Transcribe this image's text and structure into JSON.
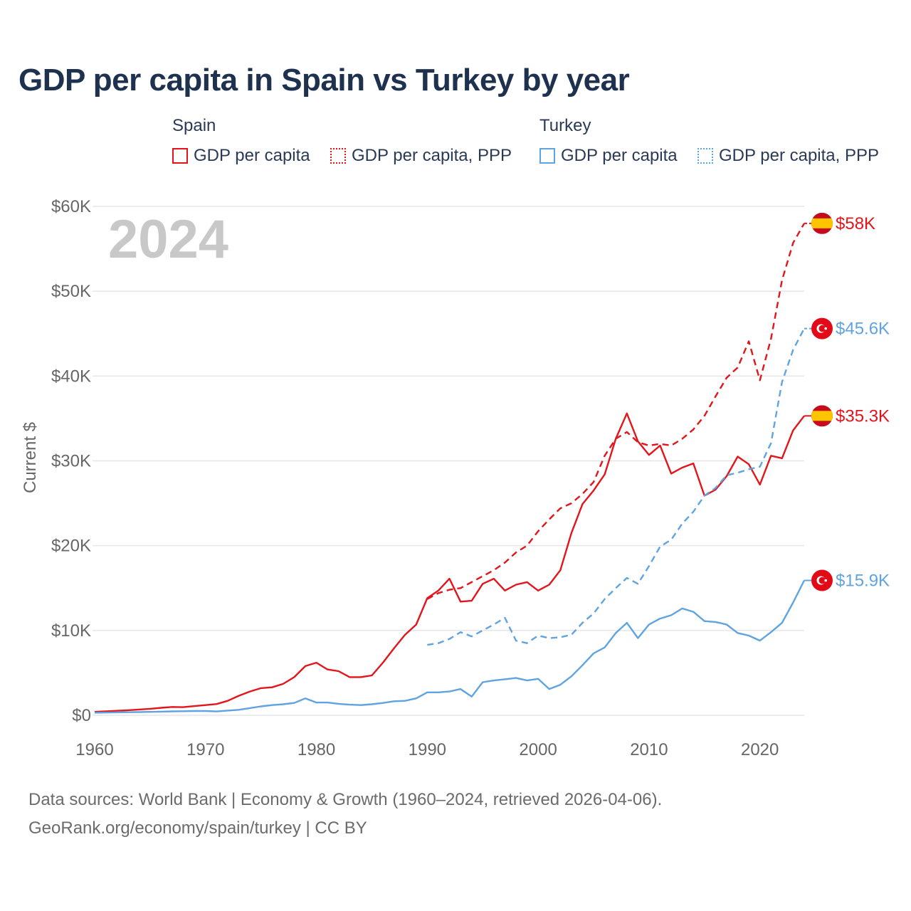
{
  "title": "GDP per capita in Spain vs Turkey by year",
  "legend": {
    "groups": [
      {
        "heading": "Spain",
        "items": [
          {
            "label": "GDP per capita"
          },
          {
            "label": "GDP per capita, PPP"
          }
        ]
      },
      {
        "heading": "Turkey",
        "items": [
          {
            "label": "GDP per capita"
          },
          {
            "label": "GDP per capita, PPP"
          }
        ]
      }
    ]
  },
  "year_label": "2024",
  "footer": {
    "line1": "Data sources: World Bank | Economy & Growth (1960–2024, retrieved 2026-04-06).",
    "line2": "GeoRank.org/economy/spain/turkey | CC BY"
  },
  "colors": {
    "spain": "#e3151b",
    "turkey": "#5fa3e0",
    "grid": "#e6e6e6",
    "axis_text": "#666666",
    "year": "#c8c8c8"
  },
  "chart_data": {
    "type": "line",
    "title": "GDP per capita in Spain vs Turkey by year",
    "xlabel": "",
    "ylabel": "Current $",
    "xlim": [
      1960,
      2024
    ],
    "ylim": [
      0,
      60000
    ],
    "x_ticks": [
      1960,
      1970,
      1980,
      1990,
      2000,
      2010,
      2020
    ],
    "x_tick_labels": [
      "1960",
      "1970",
      "1980",
      "1990",
      "2000",
      "2010",
      "2020"
    ],
    "y_ticks": [
      0,
      10000,
      20000,
      30000,
      40000,
      50000,
      60000
    ],
    "y_tick_labels": [
      "$0",
      "$10K",
      "$20K",
      "$30K",
      "$40K",
      "$50K",
      "$60K"
    ],
    "series": [
      {
        "name": "Spain GDP per capita",
        "country": "spain",
        "style": "solid",
        "end_label": "$35.3K",
        "x": [
          1960,
          1961,
          1962,
          1963,
          1964,
          1965,
          1966,
          1967,
          1968,
          1969,
          1970,
          1971,
          1972,
          1973,
          1974,
          1975,
          1976,
          1977,
          1978,
          1979,
          1980,
          1981,
          1982,
          1983,
          1984,
          1985,
          1986,
          1987,
          1988,
          1989,
          1990,
          1991,
          1992,
          1993,
          1994,
          1995,
          1996,
          1997,
          1998,
          1999,
          2000,
          2001,
          2002,
          2003,
          2004,
          2005,
          2006,
          2007,
          2008,
          2009,
          2010,
          2011,
          2012,
          2013,
          2014,
          2015,
          2016,
          2017,
          2018,
          2019,
          2020,
          2021,
          2022,
          2023,
          2024
        ],
        "values": [
          400,
          460,
          530,
          600,
          680,
          760,
          880,
          980,
          960,
          1080,
          1200,
          1330,
          1700,
          2300,
          2800,
          3200,
          3300,
          3700,
          4500,
          5800,
          6200,
          5400,
          5200,
          4500,
          4500,
          4700,
          6200,
          7900,
          9500,
          10700,
          13800,
          14700,
          16100,
          13400,
          13500,
          15500,
          16100,
          14700,
          15400,
          15700,
          14700,
          15400,
          17100,
          21500,
          24900,
          26500,
          28400,
          32600,
          35600,
          32300,
          30700,
          31800,
          28500,
          29200,
          29700,
          25900,
          26600,
          28200,
          30500,
          29600,
          27200,
          30600,
          30300,
          33600,
          35300
        ]
      },
      {
        "name": "Spain GDP per capita, PPP",
        "country": "spain",
        "style": "dashed",
        "end_label": "$58K",
        "x": [
          1990,
          1991,
          1992,
          1993,
          1994,
          1995,
          1996,
          1997,
          1998,
          1999,
          2000,
          2001,
          2002,
          2003,
          2004,
          2005,
          2006,
          2007,
          2008,
          2009,
          2010,
          2011,
          2012,
          2013,
          2014,
          2015,
          2016,
          2017,
          2018,
          2019,
          2020,
          2021,
          2022,
          2023,
          2024
        ],
        "values": [
          13700,
          14400,
          14800,
          15000,
          15700,
          16400,
          17100,
          18000,
          19200,
          20000,
          21700,
          23100,
          24400,
          25000,
          26100,
          27500,
          30600,
          32600,
          33400,
          32200,
          31800,
          32000,
          31800,
          32600,
          33700,
          35300,
          37600,
          39800,
          41000,
          44100,
          39500,
          44400,
          51300,
          55700,
          58000
        ]
      },
      {
        "name": "Turkey GDP per capita",
        "country": "turkey",
        "style": "solid",
        "end_label": "$15.9K",
        "x": [
          1960,
          1961,
          1962,
          1963,
          1964,
          1965,
          1966,
          1967,
          1968,
          1969,
          1970,
          1971,
          1972,
          1973,
          1974,
          1975,
          1976,
          1977,
          1978,
          1979,
          1980,
          1981,
          1982,
          1983,
          1984,
          1985,
          1986,
          1987,
          1988,
          1989,
          1990,
          1991,
          1992,
          1993,
          1994,
          1995,
          1996,
          1997,
          1998,
          1999,
          2000,
          2001,
          2002,
          2003,
          2004,
          2005,
          2006,
          2007,
          2008,
          2009,
          2010,
          2011,
          2012,
          2013,
          2014,
          2015,
          2016,
          2017,
          2018,
          2019,
          2020,
          2021,
          2022,
          2023,
          2024
        ],
        "values": [
          300,
          320,
          340,
          360,
          380,
          400,
          430,
          460,
          480,
          500,
          500,
          450,
          550,
          650,
          850,
          1050,
          1200,
          1300,
          1450,
          2000,
          1500,
          1500,
          1350,
          1250,
          1200,
          1300,
          1450,
          1650,
          1700,
          2000,
          2700,
          2700,
          2800,
          3100,
          2200,
          3900,
          4100,
          4250,
          4400,
          4100,
          4300,
          3100,
          3600,
          4600,
          5900,
          7300,
          8000,
          9700,
          10900,
          9100,
          10700,
          11400,
          11800,
          12600,
          12200,
          11100,
          11000,
          10700,
          9700,
          9400,
          8800,
          9800,
          10900,
          13300,
          15900
        ]
      },
      {
        "name": "Turkey GDP per capita, PPP",
        "country": "turkey",
        "style": "dashed",
        "end_label": "$45.6K",
        "x": [
          1990,
          1991,
          1992,
          1993,
          1994,
          1995,
          1996,
          1997,
          1998,
          1999,
          2000,
          2001,
          2002,
          2003,
          2004,
          2005,
          2006,
          2007,
          2008,
          2009,
          2010,
          2011,
          2012,
          2013,
          2014,
          2015,
          2016,
          2017,
          2018,
          2019,
          2020,
          2021,
          2022,
          2023,
          2024
        ],
        "values": [
          8300,
          8500,
          9000,
          9800,
          9300,
          10000,
          10700,
          11500,
          8800,
          8500,
          9400,
          9100,
          9200,
          9500,
          10900,
          12000,
          13700,
          15000,
          16200,
          15500,
          17600,
          19900,
          20700,
          22600,
          24000,
          25900,
          26800,
          28300,
          28600,
          29000,
          29300,
          32100,
          39300,
          43100,
          45600
        ]
      }
    ]
  }
}
